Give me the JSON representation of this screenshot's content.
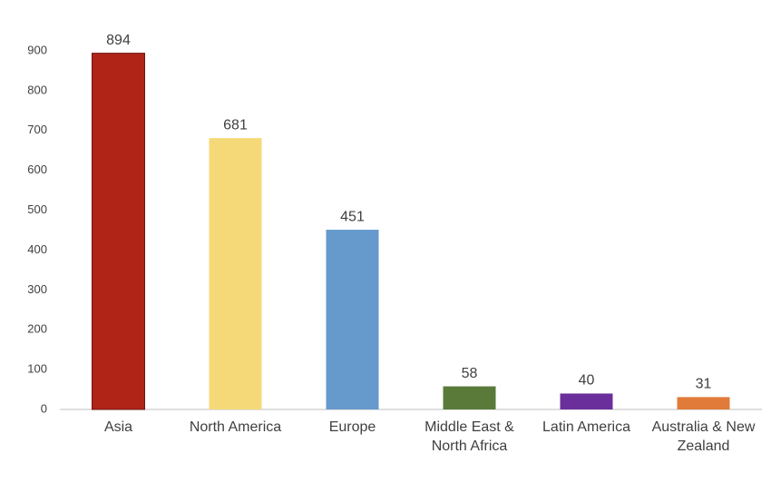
{
  "chart_data": {
    "type": "bar",
    "categories": [
      "Asia",
      "North America",
      "Europe",
      "Middle East & North Africa",
      "Latin America",
      "Australia & New Zealand"
    ],
    "values": [
      894,
      681,
      451,
      58,
      40,
      31
    ],
    "colors": [
      "#b02418",
      "#f5d978",
      "#6699cc",
      "#5a7a3a",
      "#6a2f9a",
      "#e07b39"
    ],
    "ylim": [
      0,
      900
    ],
    "yticks": [
      0,
      100,
      200,
      300,
      400,
      500,
      600,
      700,
      800,
      900
    ],
    "grid": false
  }
}
